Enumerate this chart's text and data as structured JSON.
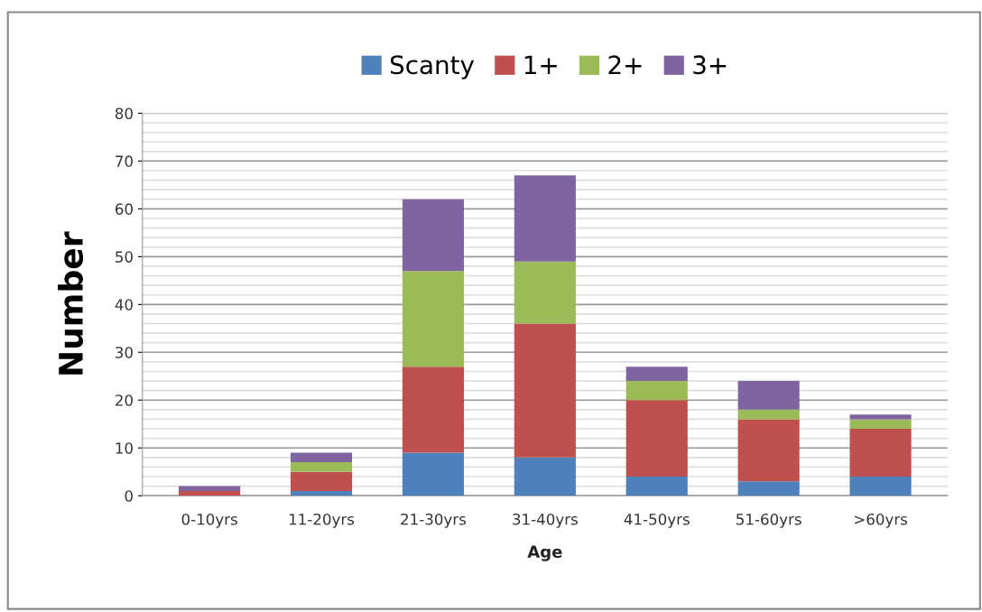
{
  "chart_data": {
    "type": "bar",
    "stacked": true,
    "xlabel": "Age",
    "ylabel": "Number",
    "categories": [
      "0-10yrs",
      "11-20yrs",
      "21-30yrs",
      "31-40yrs",
      "41-50yrs",
      "51-60yrs",
      ">60yrs"
    ],
    "series": [
      {
        "name": "Scanty",
        "color": "#4f81bd",
        "values": [
          0,
          1,
          9,
          8,
          4,
          3,
          4
        ]
      },
      {
        "name": "1+",
        "color": "#c0504d",
        "values": [
          1,
          4,
          18,
          28,
          16,
          13,
          10
        ]
      },
      {
        "name": "2+",
        "color": "#9bbb59",
        "values": [
          0,
          2,
          20,
          13,
          4,
          2,
          2
        ]
      },
      {
        "name": "3+",
        "color": "#8064a2",
        "values": [
          1,
          2,
          15,
          18,
          3,
          6,
          1
        ]
      }
    ],
    "ylim": [
      0,
      80
    ],
    "yticks": [
      0,
      10,
      20,
      30,
      40,
      50,
      60,
      70,
      80
    ],
    "grid": "y",
    "legend": "top"
  }
}
